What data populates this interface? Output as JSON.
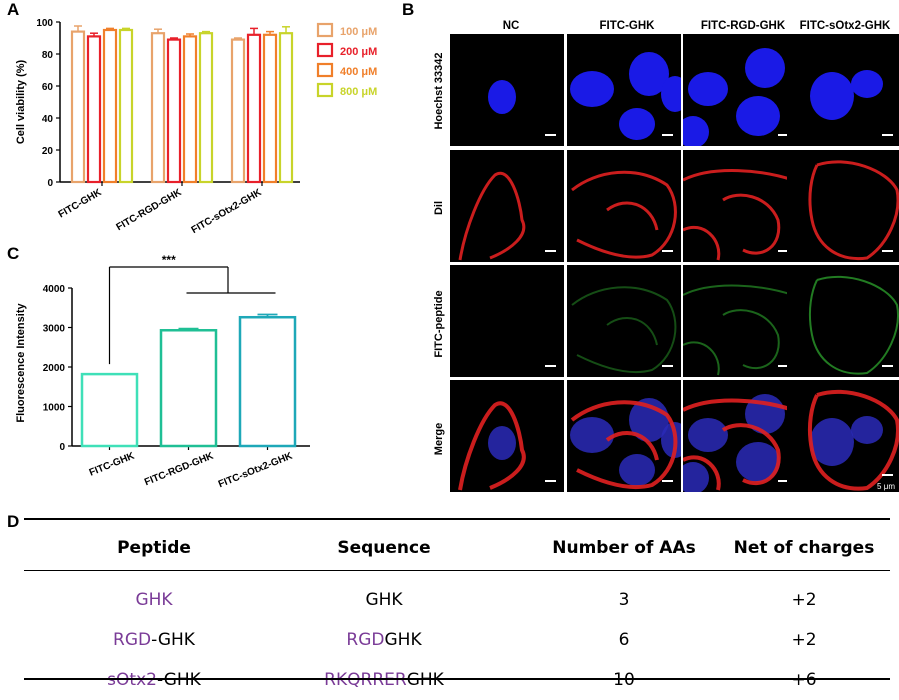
{
  "panels": {
    "a": "A",
    "b": "B",
    "c": "C",
    "d": "D"
  },
  "chart_data": [
    {
      "type": "bar",
      "panel": "A",
      "title": "",
      "ylabel": "Cell viability (%)",
      "xlabel": "",
      "ylim": [
        0,
        100
      ],
      "yticks": [
        "0",
        "20",
        "40",
        "60",
        "80",
        "100"
      ],
      "categories": [
        "FITC-GHK",
        "FITC-RGD-GHK",
        "FITC-sOtx2-GHK"
      ],
      "series": [
        {
          "name": "100 μM",
          "color": "#e8a36b",
          "values": [
            94,
            93,
            89
          ],
          "errors": [
            3.5,
            2.5,
            1
          ]
        },
        {
          "name": "200 μM",
          "color": "#e8202a",
          "values": [
            91,
            89,
            92
          ],
          "errors": [
            2,
            1,
            4
          ]
        },
        {
          "name": "400 μM",
          "color": "#f07f2a",
          "values": [
            95,
            91,
            92
          ],
          "errors": [
            1,
            1.5,
            2
          ]
        },
        {
          "name": "800 μM",
          "color": "#c8d42a",
          "values": [
            95,
            93,
            93
          ],
          "errors": [
            1,
            1,
            4
          ]
        }
      ],
      "legend_position": "right"
    },
    {
      "type": "bar",
      "panel": "C",
      "title": "",
      "ylabel": "Fluorescence Intensity",
      "xlabel": "",
      "ylim": [
        0,
        4000
      ],
      "yticks": [
        "0",
        "1000",
        "2000",
        "3000",
        "4000"
      ],
      "categories": [
        "FITC-GHK",
        "FITC-RGD-GHK",
        "FITC-sOtx2-GHK"
      ],
      "colors": [
        "#3fe0b8",
        "#1fbf95",
        "#1ea8b8"
      ],
      "values": [
        1820,
        2930,
        3260
      ],
      "errors": [
        0,
        40,
        70
      ],
      "significance": "***"
    }
  ],
  "microscopy": {
    "columns": [
      "NC",
      "FITC-GHK",
      "FITC-RGD-GHK",
      "FITC-sOtx2-GHK"
    ],
    "rows": [
      "Hoechst 33342",
      "Dil",
      "FITC-peptide",
      "Merge"
    ],
    "scale_bar": "5 μm"
  },
  "table": {
    "headers": [
      "Peptide",
      "Sequence",
      "Number of AAs",
      "Net of charges"
    ],
    "rows": [
      {
        "peptide_prefix": "GHK",
        "peptide_suffix": "",
        "seq_prefix": "",
        "seq_suffix": "GHK",
        "aas": "3",
        "charge": "+2"
      },
      {
        "peptide_prefix": "RGD",
        "peptide_suffix": "-GHK",
        "seq_prefix": "RGD",
        "seq_suffix": "GHK",
        "aas": "6",
        "charge": "+2"
      },
      {
        "peptide_prefix": "sOtx2",
        "peptide_suffix": "-GHK",
        "seq_prefix": "RKQRRER",
        "seq_suffix": "GHK",
        "aas": "10",
        "charge": "+6"
      }
    ]
  }
}
